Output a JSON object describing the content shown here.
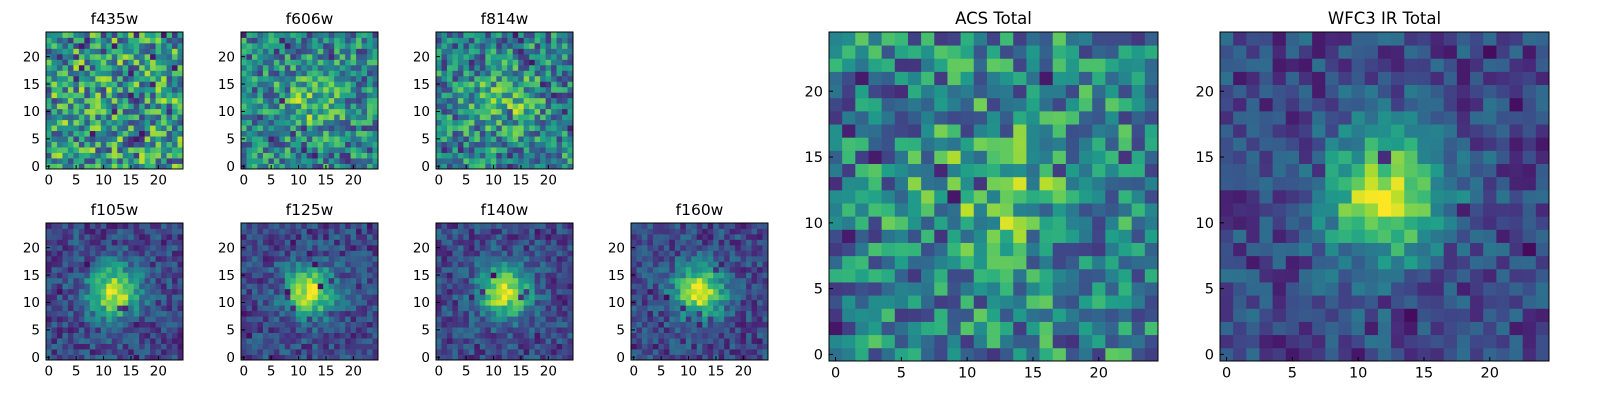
{
  "chart_data": [
    {
      "type": "heatmap",
      "title": "f435w",
      "colormap": "viridis",
      "grid": false,
      "pattern": "noise",
      "x_range": [
        0,
        25
      ],
      "y_range": [
        0,
        25
      ],
      "grid_size": [
        25,
        25
      ],
      "xticks": [
        0,
        5,
        10,
        15,
        20
      ],
      "yticks": [
        0,
        5,
        10,
        15,
        20
      ]
    },
    {
      "type": "heatmap",
      "title": "f606w",
      "colormap": "viridis",
      "grid": false,
      "pattern": "noise-faint-center",
      "x_range": [
        0,
        25
      ],
      "y_range": [
        0,
        25
      ],
      "grid_size": [
        25,
        25
      ],
      "xticks": [
        0,
        5,
        10,
        15,
        20
      ],
      "yticks": [
        0,
        5,
        10,
        15,
        20
      ]
    },
    {
      "type": "heatmap",
      "title": "f814w",
      "colormap": "viridis",
      "grid": false,
      "pattern": "noise-faint-center",
      "x_range": [
        0,
        25
      ],
      "y_range": [
        0,
        25
      ],
      "grid_size": [
        25,
        25
      ],
      "xticks": [
        0,
        5,
        10,
        15,
        20
      ],
      "yticks": [
        0,
        5,
        10,
        15,
        20
      ]
    },
    {
      "type": "heatmap",
      "title": "f105w",
      "colormap": "viridis",
      "grid": false,
      "pattern": "central-source",
      "x_range": [
        0,
        25
      ],
      "y_range": [
        0,
        25
      ],
      "grid_size": [
        25,
        25
      ],
      "xticks": [
        0,
        5,
        10,
        15,
        20
      ],
      "yticks": [
        0,
        5,
        10,
        15,
        20
      ]
    },
    {
      "type": "heatmap",
      "title": "f125w",
      "colormap": "viridis",
      "grid": false,
      "pattern": "central-source",
      "x_range": [
        0,
        25
      ],
      "y_range": [
        0,
        25
      ],
      "grid_size": [
        25,
        25
      ],
      "xticks": [
        0,
        5,
        10,
        15,
        20
      ],
      "yticks": [
        0,
        5,
        10,
        15,
        20
      ]
    },
    {
      "type": "heatmap",
      "title": "f140w",
      "colormap": "viridis",
      "grid": false,
      "pattern": "central-source",
      "x_range": [
        0,
        25
      ],
      "y_range": [
        0,
        25
      ],
      "grid_size": [
        25,
        25
      ],
      "xticks": [
        0,
        5,
        10,
        15,
        20
      ],
      "yticks": [
        0,
        5,
        10,
        15,
        20
      ]
    },
    {
      "type": "heatmap",
      "title": "f160w",
      "colormap": "viridis",
      "grid": false,
      "pattern": "central-source",
      "x_range": [
        0,
        25
      ],
      "y_range": [
        0,
        25
      ],
      "grid_size": [
        25,
        25
      ],
      "xticks": [
        0,
        5,
        10,
        15,
        20
      ],
      "yticks": [
        0,
        5,
        10,
        15,
        20
      ]
    },
    {
      "type": "heatmap",
      "title": "ACS Total",
      "colormap": "viridis",
      "grid": false,
      "pattern": "noise-faint-center",
      "x_range": [
        0,
        25
      ],
      "y_range": [
        0,
        25
      ],
      "grid_size": [
        25,
        25
      ],
      "xticks": [
        0,
        5,
        10,
        15,
        20
      ],
      "yticks": [
        0,
        5,
        10,
        15,
        20
      ]
    },
    {
      "type": "heatmap",
      "title": "WFC3 IR Total",
      "colormap": "viridis",
      "grid": false,
      "pattern": "central-source",
      "x_range": [
        0,
        25
      ],
      "y_range": [
        0,
        25
      ],
      "grid_size": [
        25,
        25
      ],
      "xticks": [
        0,
        5,
        10,
        15,
        20
      ],
      "yticks": [
        0,
        5,
        10,
        15,
        20
      ]
    }
  ]
}
